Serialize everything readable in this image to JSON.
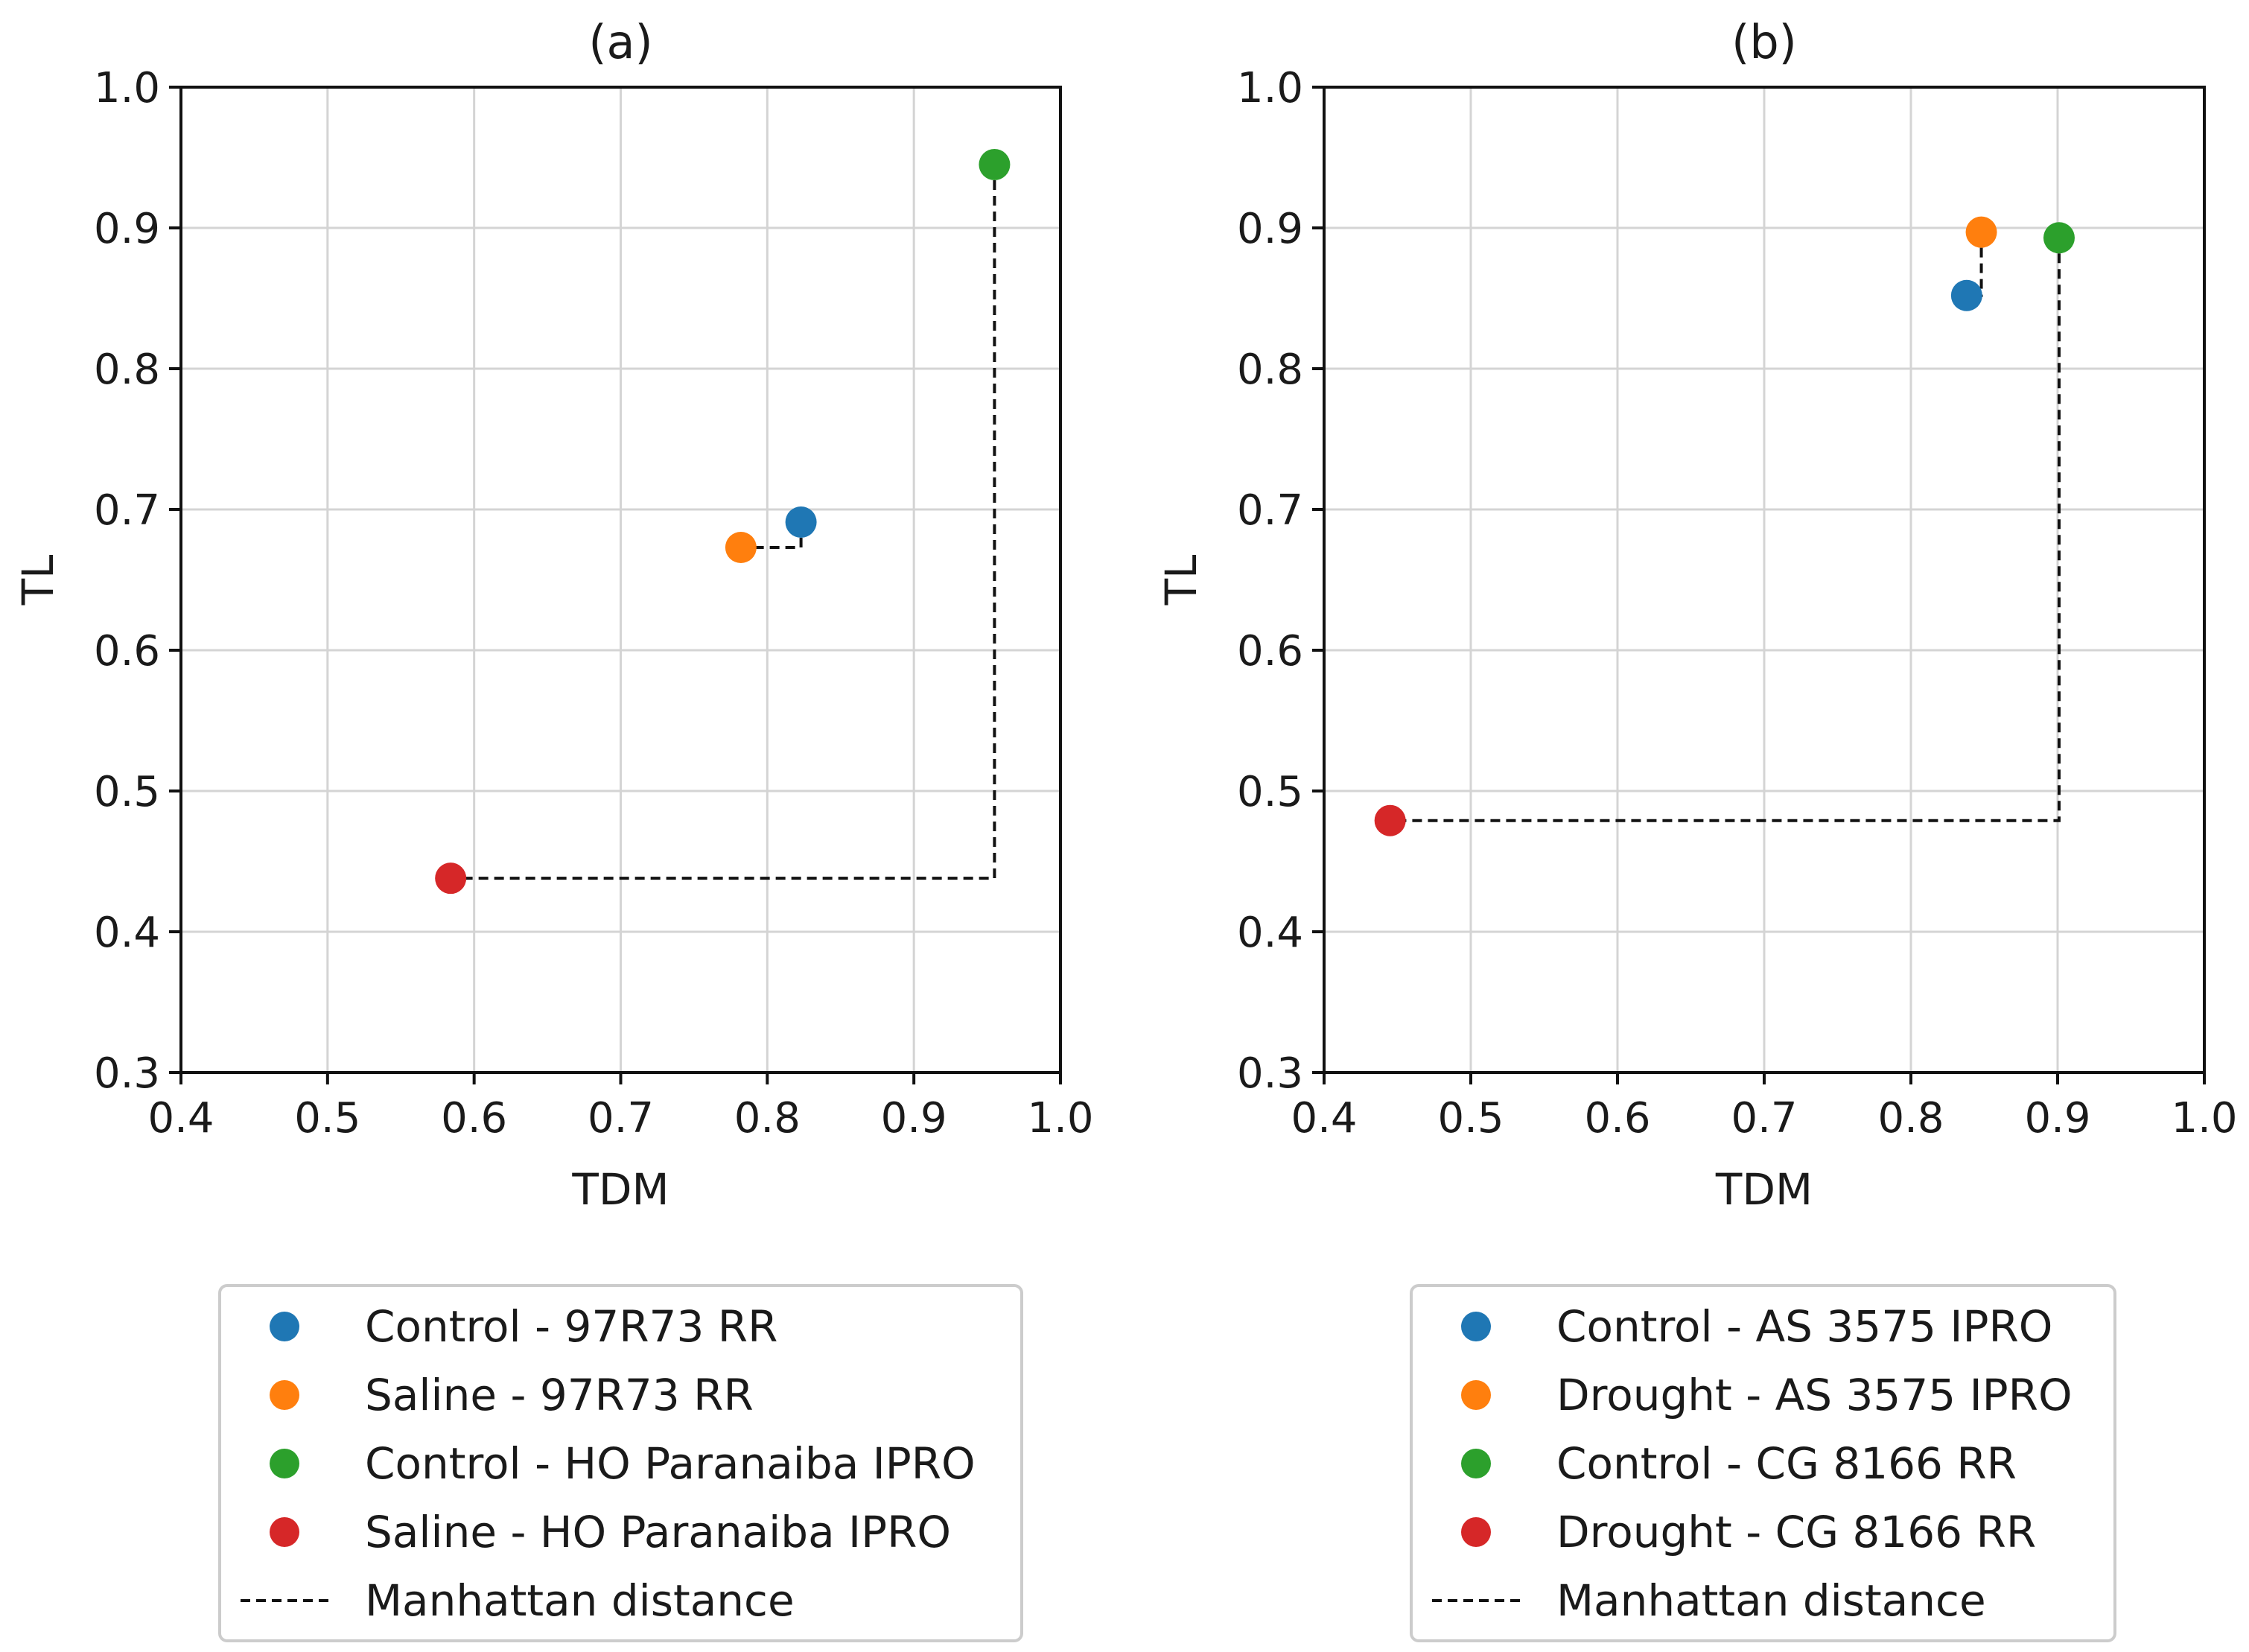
{
  "chart_data": [
    {
      "type": "scatter",
      "title": "(a)",
      "xlabel": "TDM",
      "ylabel": "TL",
      "xlim": [
        0.4,
        1.0
      ],
      "ylim": [
        0.3,
        1.0
      ],
      "xticks": [
        "0.4",
        "0.5",
        "0.6",
        "0.7",
        "0.8",
        "0.9",
        "1.0"
      ],
      "yticks": [
        "0.3",
        "0.4",
        "0.5",
        "0.6",
        "0.7",
        "0.8",
        "0.9",
        "1.0"
      ],
      "grid": true,
      "legend_position": "below",
      "series": [
        {
          "name": "Control - 97R73 RR",
          "color": "#1f77b4",
          "x": 0.823,
          "y": 0.691
        },
        {
          "name": "Saline - 97R73 RR",
          "color": "#ff7f0e",
          "x": 0.782,
          "y": 0.673
        },
        {
          "name": "Control - HO Paranaiba IPRO",
          "color": "#2ca02c",
          "x": 0.955,
          "y": 0.945
        },
        {
          "name": "Saline - HO Paranaiba IPRO",
          "color": "#d62728",
          "x": 0.584,
          "y": 0.438
        }
      ],
      "manhattan_pairs": [
        [
          0,
          1
        ],
        [
          2,
          3
        ]
      ],
      "distance_label": "Manhattan distance"
    },
    {
      "type": "scatter",
      "title": "(b)",
      "xlabel": "TDM",
      "ylabel": "TL",
      "xlim": [
        0.4,
        1.0
      ],
      "ylim": [
        0.3,
        1.0
      ],
      "xticks": [
        "0.4",
        "0.5",
        "0.6",
        "0.7",
        "0.8",
        "0.9",
        "1.0"
      ],
      "yticks": [
        "0.3",
        "0.4",
        "0.5",
        "0.6",
        "0.7",
        "0.8",
        "0.9",
        "1.0"
      ],
      "grid": true,
      "legend_position": "below",
      "series": [
        {
          "name": "Control - AS 3575 IPRO",
          "color": "#1f77b4",
          "x": 0.838,
          "y": 0.852
        },
        {
          "name": "Drought - AS 3575 IPRO",
          "color": "#ff7f0e",
          "x": 0.848,
          "y": 0.897
        },
        {
          "name": "Control - CG 8166 RR",
          "color": "#2ca02c",
          "x": 0.901,
          "y": 0.893
        },
        {
          "name": "Drought - CG 8166 RR",
          "color": "#d62728",
          "x": 0.445,
          "y": 0.479
        }
      ],
      "manhattan_pairs": [
        [
          0,
          1
        ],
        [
          2,
          3
        ]
      ],
      "distance_label": "Manhattan distance"
    }
  ]
}
